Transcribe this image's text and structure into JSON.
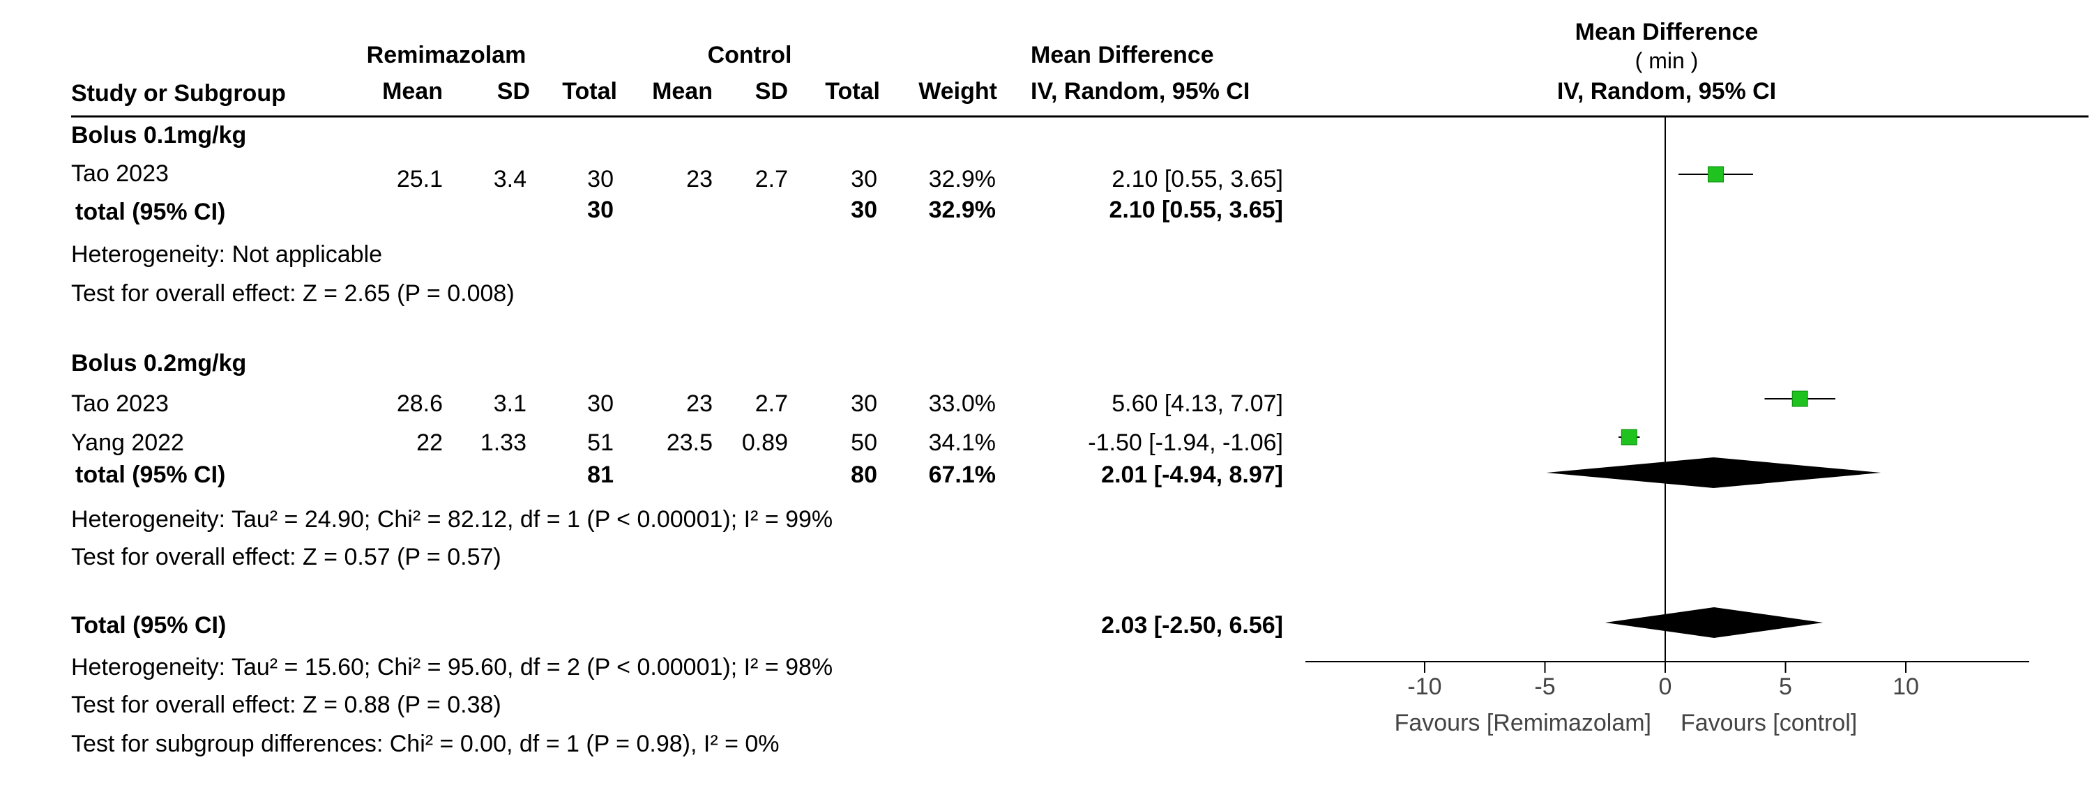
{
  "headers": {
    "group1": "Remimazolam",
    "group2": "Control",
    "md_top": "Mean Difference",
    "plot_title": "Mean Difference",
    "plot_unit": "( min )",
    "plot_method": "IV, Random, 95% CI",
    "study": "Study or Subgroup",
    "mean1": "Mean",
    "sd1": "SD",
    "total1": "Total",
    "mean2": "Mean",
    "sd2": "SD",
    "total2": "Total",
    "weight": "Weight",
    "md_method": "IV, Random, 95% CI"
  },
  "subgroups": [
    {
      "title": "Bolus 0.1mg/kg",
      "studies": [
        {
          "name": "Tao 2023",
          "mean1": "25.1",
          "sd1": "3.4",
          "total1": "30",
          "mean2": "23",
          "sd2": "2.7",
          "total2": "30",
          "weight": "32.9%",
          "ci": "2.10 [0.55, 3.65]"
        }
      ],
      "total": {
        "label": "total (95% CI)",
        "total1": "30",
        "total2": "30",
        "weight": "32.9%",
        "ci": "2.10 [0.55, 3.65]"
      },
      "heterogeneity": "Heterogeneity: Not applicable",
      "overall_effect": "Test for overall effect: Z = 2.65 (P = 0.008)"
    },
    {
      "title": "Bolus 0.2mg/kg",
      "studies": [
        {
          "name": "Tao 2023",
          "mean1": "28.6",
          "sd1": "3.1",
          "total1": "30",
          "mean2": "23",
          "sd2": "2.7",
          "total2": "30",
          "weight": "33.0%",
          "ci": "5.60 [4.13, 7.07]"
        },
        {
          "name": "Yang 2022",
          "mean1": "22",
          "sd1": "1.33",
          "total1": "51",
          "mean2": "23.5",
          "sd2": "0.89",
          "total2": "50",
          "weight": "34.1%",
          "ci": "-1.50 [-1.94, -1.06]"
        }
      ],
      "total": {
        "label": "total (95% CI)",
        "total1": "81",
        "total2": "80",
        "weight": "67.1%",
        "ci": "2.01 [-4.94, 8.97]"
      },
      "heterogeneity": "Heterogeneity: Tau² = 24.90; Chi² = 82.12, df = 1 (P < 0.00001); I² = 99%",
      "overall_effect": "Test for overall effect: Z = 0.57 (P = 0.57)"
    }
  ],
  "overall": {
    "label": "Total (95% CI)",
    "ci": "2.03 [-2.50, 6.56]",
    "heterogeneity": "Heterogeneity: Tau² = 15.60; Chi² = 95.60, df = 2 (P < 0.00001); I² = 98%",
    "overall_effect": "Test for overall effect: Z = 0.88 (P = 0.38)",
    "subgroup_diff": "Test for subgroup differences: Chi² = 0.00, df = 1 (P = 0.98), I² = 0%"
  },
  "axis": {
    "favours_left": "Favours [Remimazolam]",
    "favours_right": "Favours [control]"
  },
  "colors": {
    "square": "#1fc21f",
    "diamond": "#000000",
    "line": "#000000"
  },
  "chart_data": {
    "type": "forest",
    "xlim": [
      -15,
      15
    ],
    "xticks": [
      -10,
      -5,
      0,
      5,
      10
    ],
    "null_line": 0,
    "studies": [
      {
        "subgroup": "Bolus 0.1mg/kg",
        "name": "Tao 2023",
        "md": 2.1,
        "lower": 0.55,
        "upper": 3.65,
        "weight": 32.9
      },
      {
        "subgroup": "Bolus 0.2mg/kg",
        "name": "Tao 2023",
        "md": 5.6,
        "lower": 4.13,
        "upper": 7.07,
        "weight": 33.0
      },
      {
        "subgroup": "Bolus 0.2mg/kg",
        "name": "Yang 2022",
        "md": -1.5,
        "lower": -1.94,
        "upper": -1.06,
        "weight": 34.1
      }
    ],
    "pooled": [
      {
        "subgroup": "Bolus 0.2mg/kg",
        "md": 2.01,
        "lower": -4.94,
        "upper": 8.97
      },
      {
        "subgroup": "Overall",
        "md": 2.03,
        "lower": -2.5,
        "upper": 6.56
      }
    ]
  }
}
